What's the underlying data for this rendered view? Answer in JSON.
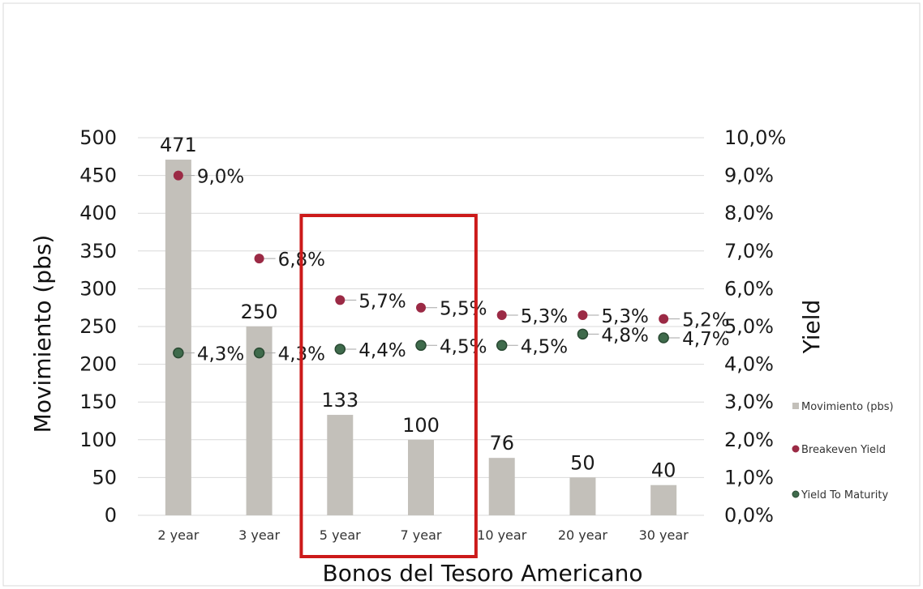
{
  "chart_data": {
    "type": "bar",
    "xlabel": "Bonos del Tesoro Americano",
    "ylabel": "Movimiento (pbs)",
    "y2label": "Yield",
    "categories": [
      "2 year",
      "3 year",
      "5 year",
      "7 year",
      "10 year",
      "20 year",
      "30 year"
    ],
    "ylim": [
      0,
      500
    ],
    "y_ticks": [
      "0",
      "50",
      "100",
      "150",
      "200",
      "250",
      "300",
      "350",
      "400",
      "450",
      "500"
    ],
    "y2lim": [
      0,
      10
    ],
    "y2_ticks": [
      "0,0%",
      "1,0%",
      "2,0%",
      "3,0%",
      "4,0%",
      "5,0%",
      "6,0%",
      "7,0%",
      "8,0%",
      "9,0%",
      "10,0%"
    ],
    "grid": true,
    "legend_position": "right",
    "highlight": {
      "categories": [
        "5 year",
        "7 year"
      ],
      "color": "#cc1a1a"
    },
    "series": [
      {
        "name": "Movimiento (pbs)",
        "type": "bar",
        "axis": "left",
        "color": "#c3c0ba",
        "values": [
          471,
          250,
          133,
          100,
          76,
          50,
          40
        ],
        "labels": [
          "471",
          "250",
          "133",
          "100",
          "76",
          "50",
          "40"
        ]
      },
      {
        "name": "Breakeven Yield",
        "type": "scatter",
        "axis": "right",
        "color": "#9b2a45",
        "values": [
          9.0,
          6.8,
          5.7,
          5.5,
          5.3,
          5.3,
          5.2
        ],
        "labels": [
          "9,0%",
          "6,8%",
          "5,7%",
          "5,5%",
          "5,3%",
          "5,3%",
          "5,2%"
        ]
      },
      {
        "name": "Yield To Maturity",
        "type": "scatter",
        "axis": "right",
        "color": "#3f6b4c",
        "values": [
          4.3,
          4.3,
          4.4,
          4.5,
          4.5,
          4.8,
          4.7
        ],
        "labels": [
          "4,3%",
          "4,3%",
          "4,4%",
          "4,5%",
          "4,5%",
          "4,8%",
          "4,7%"
        ]
      }
    ]
  }
}
